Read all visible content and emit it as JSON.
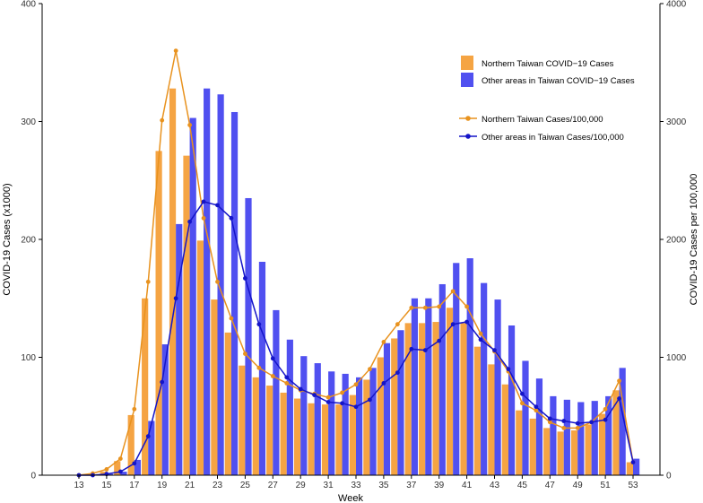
{
  "chart_data": {
    "type": "bar",
    "xlabel": "Week",
    "ylabel_left": "COVID-19 Cases (x1000)",
    "ylabel_right": "COVID-19 Cases per 100,000",
    "ylim_left": [
      0,
      400
    ],
    "ylim_right": [
      0,
      4000
    ],
    "yticks_left": [
      "0",
      "100",
      "200",
      "300",
      "400"
    ],
    "yticks_right": [
      "0",
      "1000",
      "2000",
      "3000",
      "4000"
    ],
    "x_tick_labels": [
      "13",
      "15",
      "17",
      "19",
      "21",
      "23",
      "25",
      "27",
      "29",
      "31",
      "33",
      "35",
      "37",
      "39",
      "41",
      "43",
      "45",
      "47",
      "49",
      "51",
      "53"
    ],
    "grid": false,
    "legend_position": "top-right",
    "weeks": [
      13,
      14,
      15,
      16,
      17,
      18,
      19,
      20,
      21,
      22,
      23,
      24,
      25,
      26,
      27,
      28,
      29,
      30,
      31,
      32,
      33,
      34,
      35,
      36,
      37,
      38,
      39,
      40,
      41,
      42,
      43,
      44,
      45,
      46,
      47,
      48,
      49,
      50,
      51,
      52,
      53
    ],
    "bar_series": [
      {
        "name": "Northern Taiwan COVID−19 Cases",
        "color": "#F5A443",
        "values": [
          0,
          1,
          3,
          12,
          51,
          150,
          275,
          328,
          271,
          199,
          149,
          121,
          93,
          83,
          76,
          70,
          65,
          61,
          60,
          60,
          68,
          81,
          100,
          116,
          129,
          129,
          130,
          142,
          129,
          109,
          94,
          77,
          55,
          48,
          40,
          37,
          38,
          43,
          52,
          72,
          11
        ]
      },
      {
        "name": "Other areas in Taiwan COVID−19 Cases",
        "color": "#5050F0",
        "values": [
          0,
          0,
          1,
          3,
          13,
          46,
          111,
          213,
          303,
          328,
          323,
          308,
          235,
          181,
          140,
          115,
          101,
          95,
          88,
          86,
          83,
          91,
          112,
          123,
          150,
          150,
          162,
          180,
          184,
          163,
          149,
          127,
          97,
          82,
          67,
          64,
          62,
          63,
          67,
          91,
          14
        ]
      }
    ],
    "line_series": [
      {
        "name": "Northern Taiwan Cases/100,000",
        "color": "#E8921E",
        "axis": "right",
        "values": [
          0,
          15,
          50,
          140,
          560,
          1640,
          3010,
          3600,
          2970,
          2180,
          1640,
          1330,
          1030,
          910,
          840,
          780,
          720,
          690,
          660,
          700,
          770,
          900,
          1130,
          1280,
          1420,
          1420,
          1430,
          1560,
          1430,
          1200,
          1050,
          880,
          610,
          550,
          450,
          400,
          400,
          450,
          560,
          800,
          110
        ]
      },
      {
        "name": "Other areas in Taiwan Cases/100,000",
        "color": "#1414C8",
        "axis": "right",
        "values": [
          0,
          0,
          10,
          30,
          100,
          330,
          790,
          1500,
          2150,
          2320,
          2290,
          2180,
          1670,
          1280,
          990,
          830,
          730,
          680,
          620,
          610,
          580,
          640,
          780,
          870,
          1070,
          1060,
          1140,
          1280,
          1300,
          1150,
          1060,
          900,
          690,
          580,
          480,
          460,
          440,
          450,
          470,
          650,
          110
        ]
      }
    ]
  }
}
